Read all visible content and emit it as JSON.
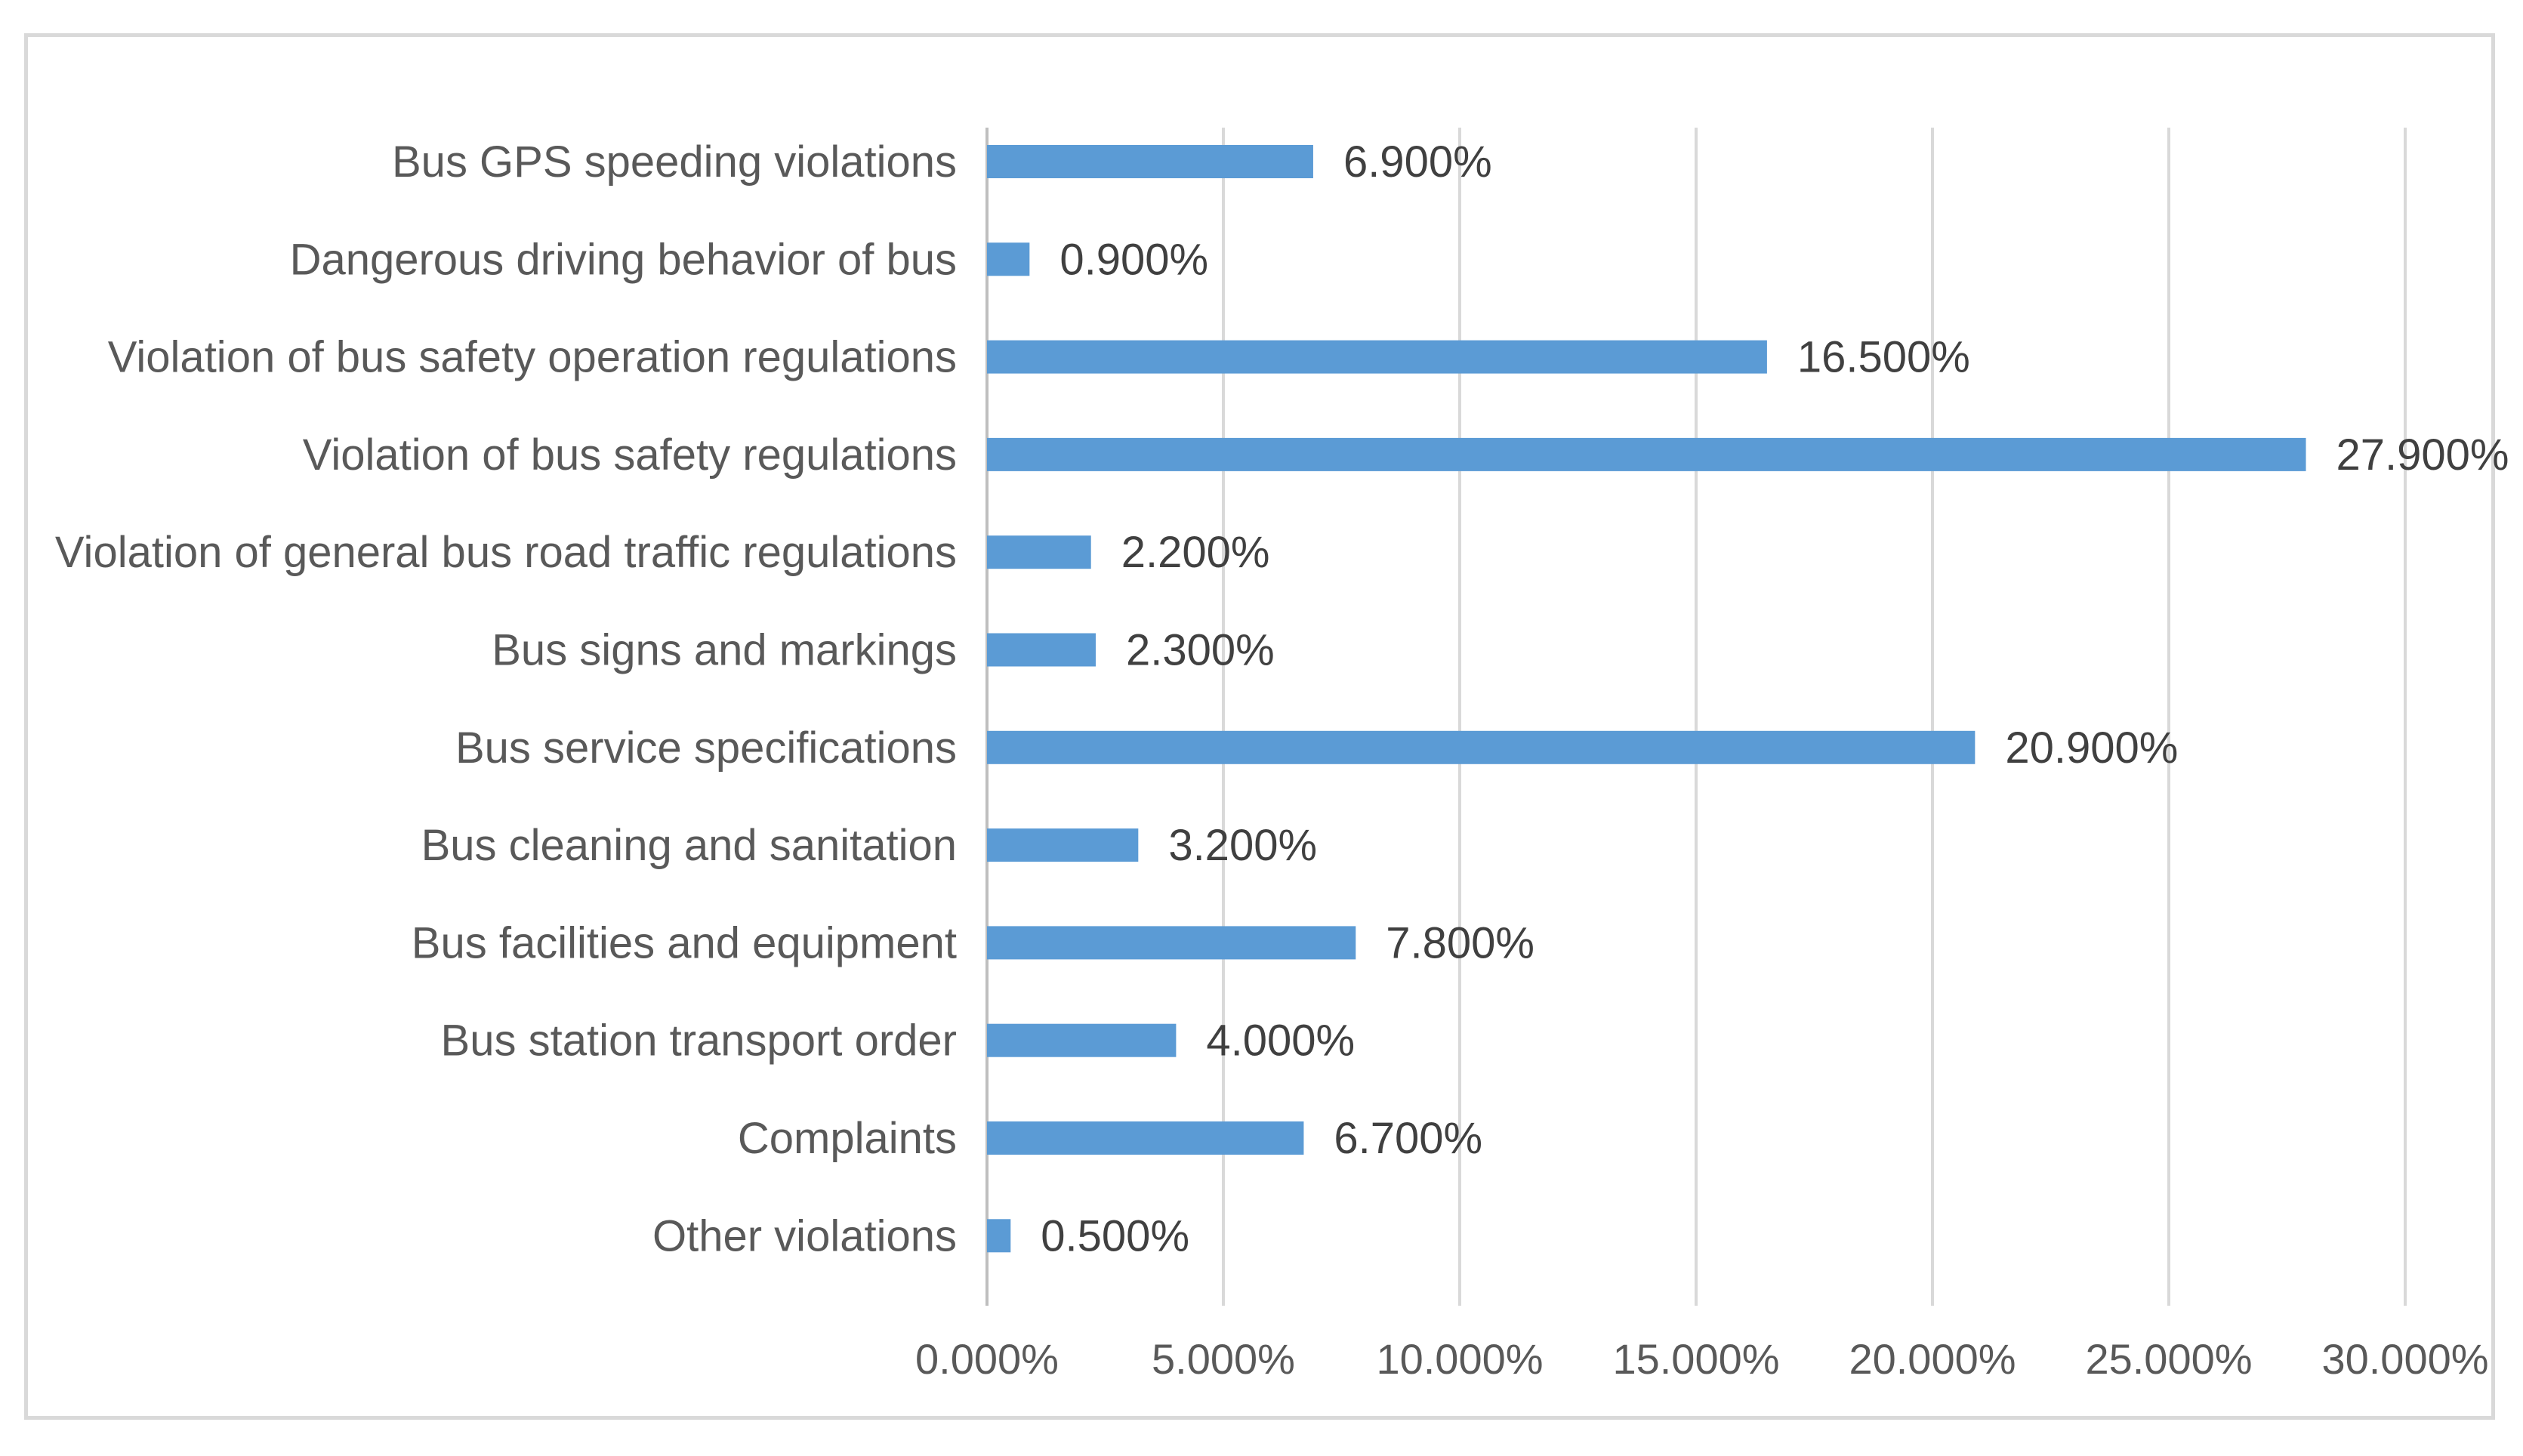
{
  "chart_data": {
    "type": "bar",
    "orientation": "horizontal",
    "title": "",
    "xlabel": "",
    "ylabel": "",
    "categories": [
      "Bus GPS speeding violations",
      "Dangerous driving behavior of bus",
      "Violation of bus safety operation regulations",
      "Violation of bus safety regulations",
      "Violation of general bus road traffic regulations",
      "Bus signs and markings",
      "Bus service specifications",
      "Bus cleaning and sanitation",
      "Bus facilities and equipment",
      "Bus station transport order",
      "Complaints",
      "Other violations"
    ],
    "values": [
      6.9,
      0.9,
      16.5,
      27.9,
      2.2,
      2.3,
      20.9,
      3.2,
      7.8,
      4.0,
      6.7,
      0.5
    ],
    "value_labels": [
      "6.900%",
      "0.900%",
      "16.500%",
      "27.900%",
      "2.200%",
      "2.300%",
      "20.900%",
      "3.200%",
      "7.800%",
      "4.000%",
      "6.700%",
      "0.500%"
    ],
    "xlim": [
      0,
      30
    ],
    "xticks": [
      0,
      5,
      10,
      15,
      20,
      25,
      30
    ],
    "xtick_labels": [
      "0.000%",
      "5.000%",
      "10.000%",
      "15.000%",
      "20.000%",
      "25.000%",
      "30.000%"
    ],
    "grid": true,
    "legend": "none",
    "bar_color": "#5b9bd5",
    "grid_color": "#d9d9d9",
    "text_color": "#595959"
  }
}
